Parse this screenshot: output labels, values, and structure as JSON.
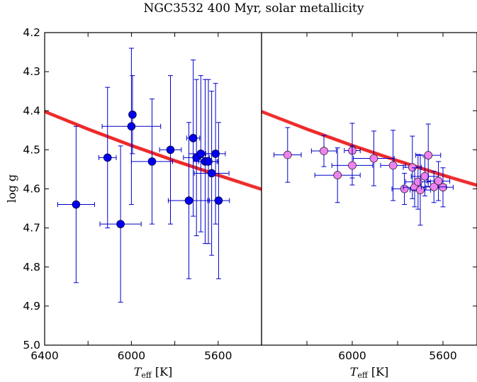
{
  "chart_data": {
    "type": "scatter",
    "title": "NGC3532 400 Myr, solar metallicity",
    "ylabel": "log g",
    "yticks": [
      "4.2",
      "4.3",
      "4.4",
      "4.5",
      "4.6",
      "4.7",
      "4.8",
      "4.9",
      "5.0"
    ],
    "ylim": [
      5.0,
      4.2
    ],
    "grid": false,
    "colors": {
      "left_points": "#0000ee",
      "right_points": "#ee82ee",
      "errorbars": "#0000cc",
      "isochrone": "#ee2222"
    },
    "panels": [
      {
        "id": "left",
        "xlabel": "Teff [K]",
        "xticks": [
          "6400",
          "6000",
          "5600"
        ],
        "xlim": [
          6400,
          5400
        ],
        "isochrone": [
          [
            6400,
            4.402
          ],
          [
            6200,
            4.447
          ],
          [
            6000,
            4.489
          ],
          [
            5800,
            4.528
          ],
          [
            5600,
            4.565
          ],
          [
            5400,
            4.601
          ]
        ],
        "points": [
          {
            "teff": 6255,
            "logg": 4.64,
            "teff_err": 85,
            "logg_err": 0.2
          },
          {
            "teff": 6110,
            "logg": 4.52,
            "teff_err": 40,
            "logg_err": 0.18
          },
          {
            "teff": 6050,
            "logg": 4.69,
            "teff_err": 95,
            "logg_err": 0.2
          },
          {
            "teff": 5995,
            "logg": 4.41,
            "teff_err": 5,
            "logg_err": 0.1
          },
          {
            "teff": 6000,
            "logg": 4.44,
            "teff_err": 135,
            "logg_err": 0.2
          },
          {
            "teff": 5905,
            "logg": 4.53,
            "teff_err": 95,
            "logg_err": 0.16
          },
          {
            "teff": 5820,
            "logg": 4.5,
            "teff_err": 50,
            "logg_err": 0.19
          },
          {
            "teff": 5735,
            "logg": 4.63,
            "teff_err": 95,
            "logg_err": 0.2
          },
          {
            "teff": 5715,
            "logg": 4.47,
            "teff_err": 30,
            "logg_err": 0.2
          },
          {
            "teff": 5700,
            "logg": 4.52,
            "teff_err": 60,
            "logg_err": 0.2
          },
          {
            "teff": 5680,
            "logg": 4.51,
            "teff_err": 55,
            "logg_err": 0.2
          },
          {
            "teff": 5660,
            "logg": 4.53,
            "teff_err": 55,
            "logg_err": 0.21
          },
          {
            "teff": 5645,
            "logg": 4.53,
            "teff_err": 45,
            "logg_err": 0.21
          },
          {
            "teff": 5630,
            "logg": 4.56,
            "teff_err": 80,
            "logg_err": 0.21
          },
          {
            "teff": 5612,
            "logg": 4.51,
            "teff_err": 45,
            "logg_err": 0.18
          },
          {
            "teff": 5598,
            "logg": 4.63,
            "teff_err": 50,
            "logg_err": 0.2
          }
        ]
      },
      {
        "id": "right",
        "xlabel": "Teff [K]",
        "xticks": [
          "6000",
          "5600"
        ],
        "xlim": [
          6400,
          5450
        ],
        "isochrone": [
          [
            6400,
            4.402
          ],
          [
            6200,
            4.447
          ],
          [
            6000,
            4.489
          ],
          [
            5800,
            4.528
          ],
          [
            5600,
            4.565
          ],
          [
            5450,
            4.591
          ]
        ],
        "points": [
          {
            "teff": 6285,
            "logg": 4.513,
            "teff_err": 60,
            "logg_err": 0.07
          },
          {
            "teff": 6125,
            "logg": 4.503,
            "teff_err": 55,
            "logg_err": 0.04
          },
          {
            "teff": 6065,
            "logg": 4.565,
            "teff_err": 100,
            "logg_err": 0.07
          },
          {
            "teff": 6000,
            "logg": 4.502,
            "teff_err": 35,
            "logg_err": 0.07
          },
          {
            "teff": 6000,
            "logg": 4.54,
            "teff_err": 90,
            "logg_err": 0.05
          },
          {
            "teff": 5905,
            "logg": 4.522,
            "teff_err": 90,
            "logg_err": 0.07
          },
          {
            "teff": 5820,
            "logg": 4.54,
            "teff_err": 55,
            "logg_err": 0.09
          },
          {
            "teff": 5770,
            "logg": 4.6,
            "teff_err": 55,
            "logg_err": 0.04
          },
          {
            "teff": 5735,
            "logg": 4.545,
            "teff_err": 40,
            "logg_err": 0.08
          },
          {
            "teff": 5725,
            "logg": 4.596,
            "teff_err": 50,
            "logg_err": 0.05
          },
          {
            "teff": 5710,
            "logg": 4.582,
            "teff_err": 55,
            "logg_err": 0.07
          },
          {
            "teff": 5700,
            "logg": 4.603,
            "teff_err": 45,
            "logg_err": 0.09
          },
          {
            "teff": 5680,
            "logg": 4.568,
            "teff_err": 60,
            "logg_err": 0.05
          },
          {
            "teff": 5665,
            "logg": 4.514,
            "teff_err": 55,
            "logg_err": 0.08
          },
          {
            "teff": 5620,
            "logg": 4.58,
            "teff_err": 50,
            "logg_err": 0.05
          },
          {
            "teff": 5600,
            "logg": 4.596,
            "teff_err": 45,
            "logg_err": 0.05
          },
          {
            "teff": 5640,
            "logg": 4.595,
            "teff_err": 55,
            "logg_err": 0.04
          }
        ]
      }
    ]
  }
}
